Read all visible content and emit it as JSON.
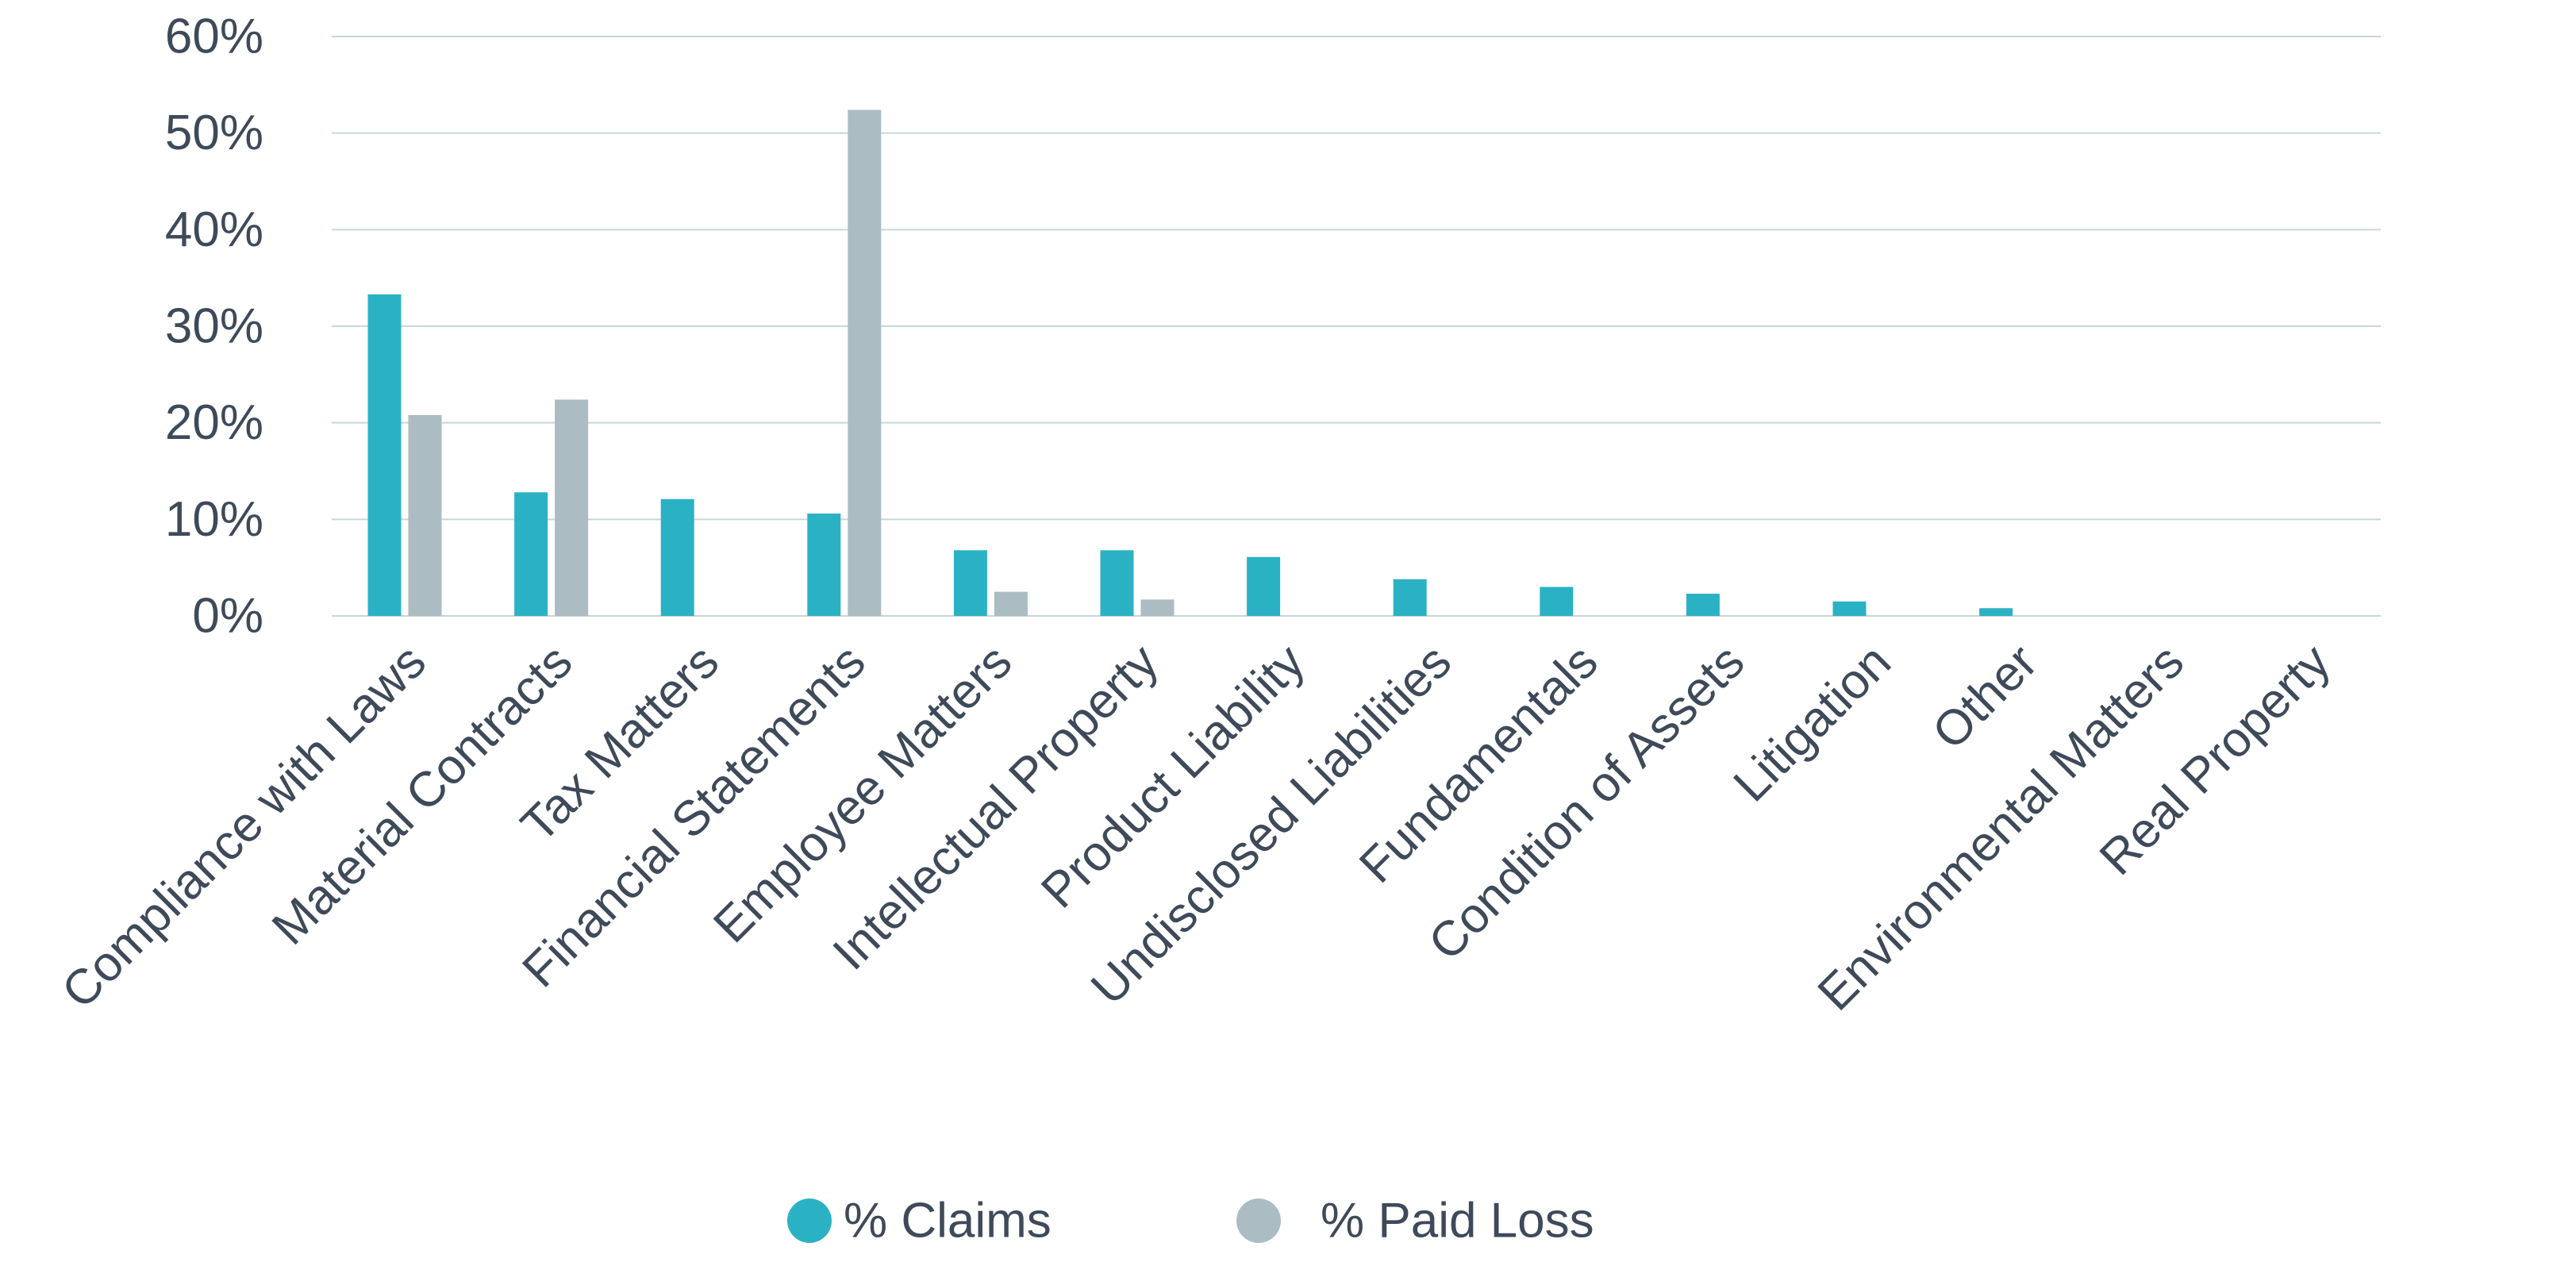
{
  "chart_data": {
    "type": "bar",
    "categories": [
      "Compliance with Laws",
      "Material Contracts",
      "Tax Matters",
      "Financial Statements",
      "Employee Matters",
      "Intellectual Property",
      "Product Liability",
      "Undisclosed Liabilities",
      "Fundamentals",
      "Condition of Assets",
      "Litigation",
      "Other",
      "Environmental Matters",
      "Real Property"
    ],
    "series": [
      {
        "name": "% Claims",
        "color": "#2ab2c4",
        "values": [
          33.3,
          12.8,
          12.1,
          10.6,
          6.8,
          6.8,
          6.1,
          3.8,
          3.0,
          2.3,
          1.5,
          0.8,
          0,
          0
        ]
      },
      {
        "name": "% Paid Loss",
        "color": "#abbcc2",
        "values": [
          20.8,
          22.4,
          0,
          52.4,
          2.5,
          1.7,
          0,
          0,
          0,
          0,
          0,
          0,
          0,
          0
        ]
      }
    ],
    "yticks": [
      "0%",
      "10%",
      "20%",
      "30%",
      "40%",
      "50%",
      "60%"
    ],
    "ylim": [
      0,
      60
    ],
    "grid": true,
    "legend_position": "bottom-center"
  }
}
